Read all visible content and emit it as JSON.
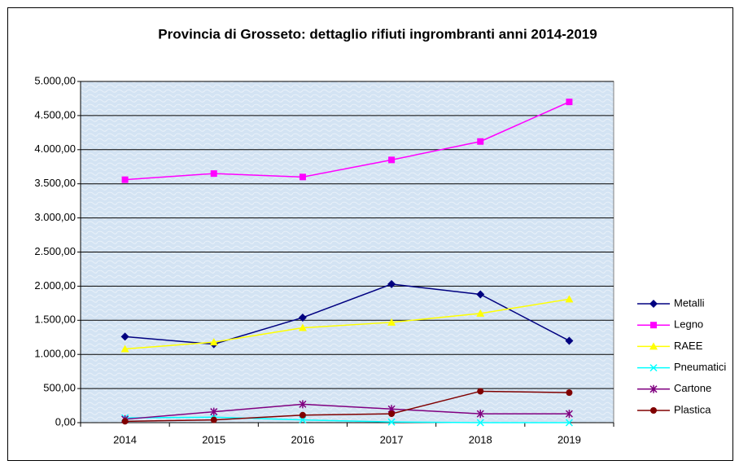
{
  "chart_data": {
    "type": "line",
    "title": "Provincia di Grosseto: dettaglio rifiuti ingrombranti anni 2014-2019",
    "categories": [
      "2014",
      "2015",
      "2016",
      "2017",
      "2018",
      "2019"
    ],
    "series": [
      {
        "name": "Metalli",
        "color": "#000080",
        "marker": "diamond",
        "values": [
          1260,
          1150,
          1540,
          2030,
          1880,
          1200
        ]
      },
      {
        "name": "Legno",
        "color": "#ff00ff",
        "marker": "square",
        "values": [
          3560,
          3650,
          3600,
          3850,
          4120,
          4700
        ]
      },
      {
        "name": "RAEE",
        "color": "#ffff00",
        "marker": "triangle",
        "values": [
          1080,
          1180,
          1390,
          1470,
          1600,
          1810
        ]
      },
      {
        "name": "Pneumatici",
        "color": "#00ffff",
        "marker": "x",
        "values": [
          70,
          80,
          40,
          10,
          0,
          0
        ]
      },
      {
        "name": "Cartone",
        "color": "#800080",
        "marker": "star",
        "values": [
          50,
          160,
          270,
          200,
          130,
          130
        ]
      },
      {
        "name": "Plastica",
        "color": "#800000",
        "marker": "circle",
        "values": [
          20,
          40,
          110,
          130,
          460,
          440
        ]
      }
    ],
    "ylim": [
      0,
      5000
    ],
    "yticks": [
      {
        "value": 0,
        "label": "0,00"
      },
      {
        "value": 500,
        "label": "500,00"
      },
      {
        "value": 1000,
        "label": "1.000,00"
      },
      {
        "value": 1500,
        "label": "1.500,00"
      },
      {
        "value": 2000,
        "label": "2.000,00"
      },
      {
        "value": 2500,
        "label": "2.500,00"
      },
      {
        "value": 3000,
        "label": "3.000,00"
      },
      {
        "value": 3500,
        "label": "3.500,00"
      },
      {
        "value": 4000,
        "label": "4.000,00"
      },
      {
        "value": 4500,
        "label": "4.500,00"
      },
      {
        "value": 5000,
        "label": "5.000,00"
      }
    ],
    "grid": true,
    "legend": "right"
  }
}
